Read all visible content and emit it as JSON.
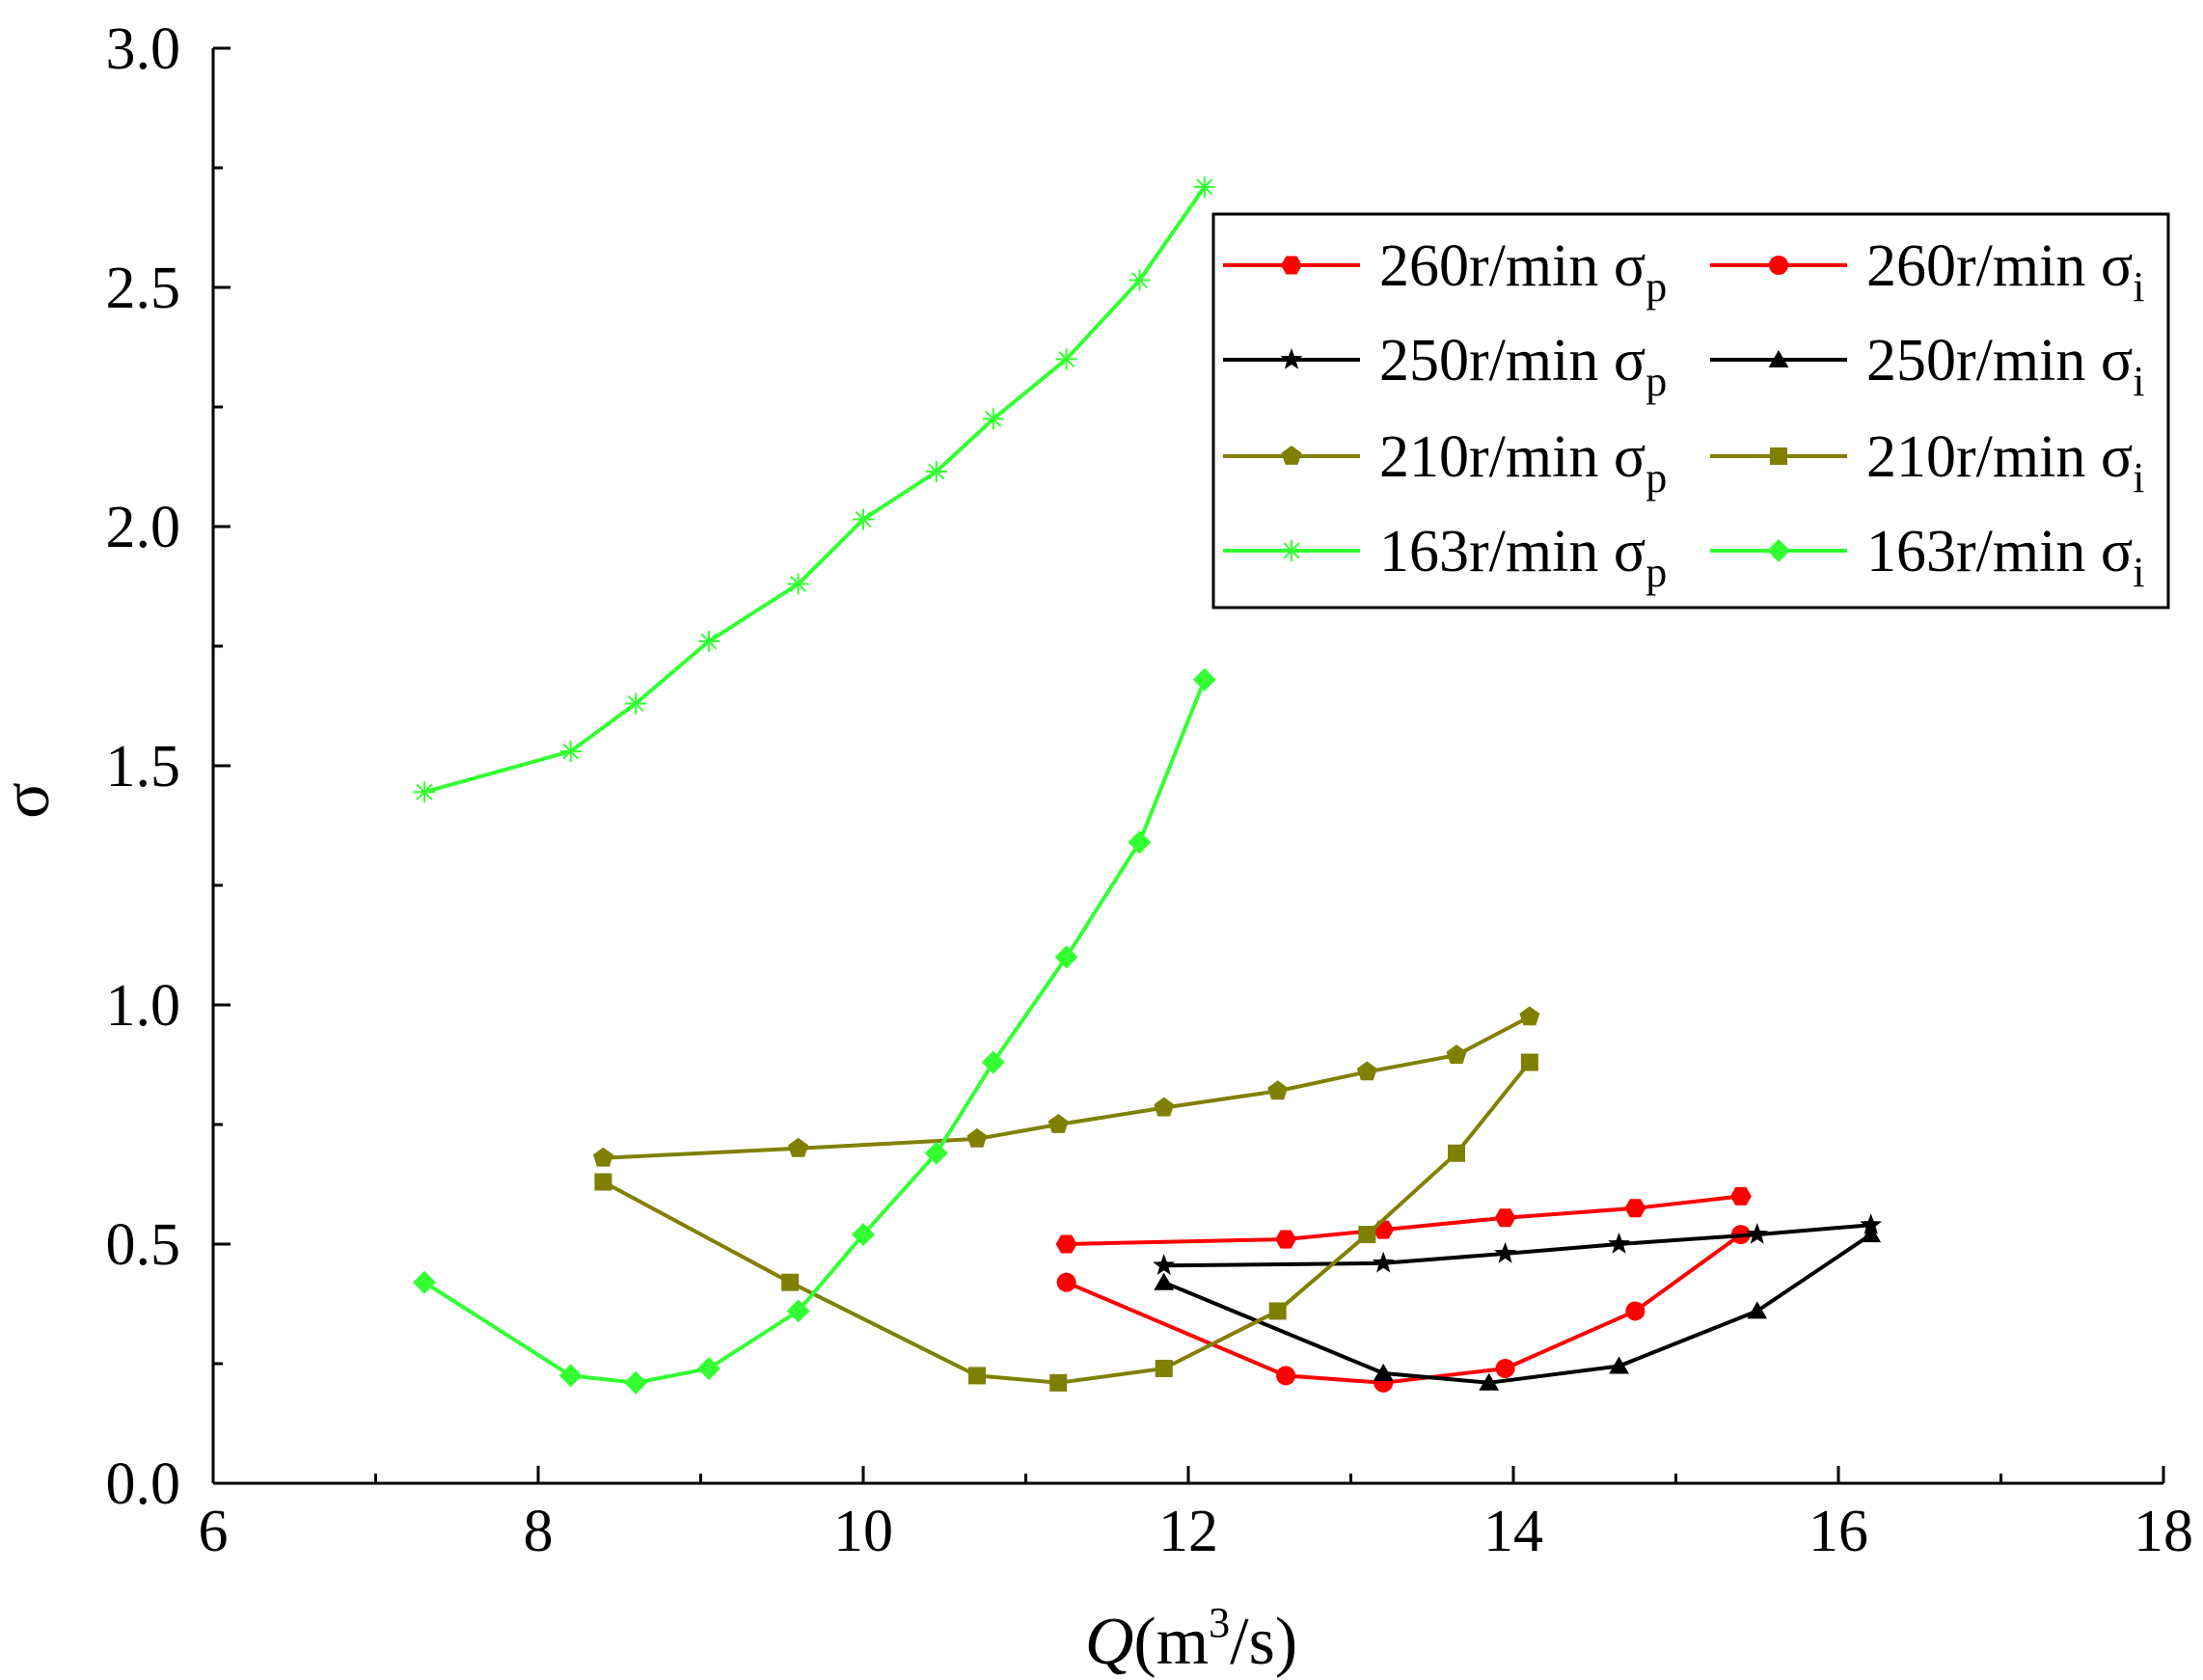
{
  "chart_data": {
    "type": "line",
    "title": "",
    "xlabel": "Q(m3/s)",
    "xlabel_parts": {
      "var": "Q",
      "open": "(m",
      "sup": "3",
      "close": "/s)"
    },
    "ylabel": "σ",
    "xlim": [
      6,
      18
    ],
    "ylim": [
      0.0,
      3.0
    ],
    "xticks": [
      6,
      8,
      10,
      12,
      14,
      16,
      18
    ],
    "xtick_labels": [
      "6",
      "8",
      "10",
      "12",
      "14",
      "16",
      "18"
    ],
    "xminor_ticks": [
      7,
      9,
      11,
      13,
      15,
      17
    ],
    "yticks": [
      0.0,
      0.5,
      1.0,
      1.5,
      2.0,
      2.5,
      3.0
    ],
    "ytick_labels": [
      "0.0",
      "0.5",
      "1.0",
      "1.5",
      "2.0",
      "2.5",
      "3.0"
    ],
    "grid": false,
    "legend_position": "top-right",
    "series": [
      {
        "name": "260r/min σp",
        "label_main": "260r/min σ",
        "label_sub": "p",
        "color": "#ff0000",
        "marker": "hexagon",
        "x": [
          11.25,
          12.6,
          13.2,
          13.95,
          14.75,
          15.4
        ],
        "y": [
          0.5,
          0.51,
          0.53,
          0.555,
          0.575,
          0.6
        ]
      },
      {
        "name": "260r/min σi",
        "label_main": "260r/min σ",
        "label_sub": "i",
        "color": "#ff0000",
        "marker": "circle",
        "x": [
          11.25,
          12.6,
          13.2,
          13.95,
          14.75,
          15.4
        ],
        "y": [
          0.42,
          0.225,
          0.21,
          0.24,
          0.36,
          0.52
        ]
      },
      {
        "name": "250r/min σp",
        "label_main": "250r/min σ",
        "label_sub": "p",
        "color": "#000000",
        "marker": "star",
        "x": [
          11.85,
          13.2,
          13.95,
          14.65,
          15.5,
          16.2
        ],
        "y": [
          0.455,
          0.46,
          0.48,
          0.5,
          0.52,
          0.54
        ]
      },
      {
        "name": "250r/min σi",
        "label_main": "250r/min σ",
        "label_sub": "i",
        "color": "#000000",
        "marker": "triangle",
        "x": [
          11.85,
          13.2,
          13.85,
          14.65,
          15.5,
          16.2
        ],
        "y": [
          0.42,
          0.23,
          0.21,
          0.245,
          0.36,
          0.52
        ]
      },
      {
        "name": "210r/min σp",
        "label_main": "210r/min σ",
        "label_sub": "p",
        "color": "#808000",
        "marker": "pentagon",
        "x": [
          8.4,
          9.6,
          10.7,
          11.2,
          11.85,
          12.55,
          13.1,
          13.65,
          14.1
        ],
        "y": [
          0.68,
          0.7,
          0.72,
          0.75,
          0.785,
          0.82,
          0.86,
          0.895,
          0.975
        ]
      },
      {
        "name": "210r/min σi",
        "label_main": "210r/min σ",
        "label_sub": "i",
        "color": "#808000",
        "marker": "square",
        "x": [
          8.4,
          9.55,
          10.7,
          11.2,
          11.85,
          12.55,
          13.1,
          13.65,
          14.1
        ],
        "y": [
          0.63,
          0.42,
          0.225,
          0.21,
          0.24,
          0.36,
          0.52,
          0.69,
          0.88
        ]
      },
      {
        "name": "163r/min σp",
        "label_main": "163r/min σ",
        "label_sub": "p",
        "color": "#33ff33",
        "marker": "asterisk",
        "x": [
          7.3,
          8.2,
          8.6,
          9.05,
          9.6,
          10.0,
          10.45,
          10.8,
          11.25,
          11.7,
          12.1
        ],
        "y": [
          1.445,
          1.53,
          1.63,
          1.76,
          1.88,
          2.015,
          2.115,
          2.225,
          2.35,
          2.515,
          2.71
        ]
      },
      {
        "name": "163r/min σi",
        "label_main": "163r/min σ",
        "label_sub": "i",
        "color": "#33ff33",
        "marker": "diamond",
        "x": [
          7.3,
          8.2,
          8.6,
          9.05,
          9.6,
          10.0,
          10.45,
          10.8,
          11.25,
          11.7,
          12.1
        ],
        "y": [
          0.42,
          0.225,
          0.21,
          0.24,
          0.36,
          0.52,
          0.69,
          0.88,
          1.1,
          1.34,
          1.68
        ]
      }
    ]
  }
}
